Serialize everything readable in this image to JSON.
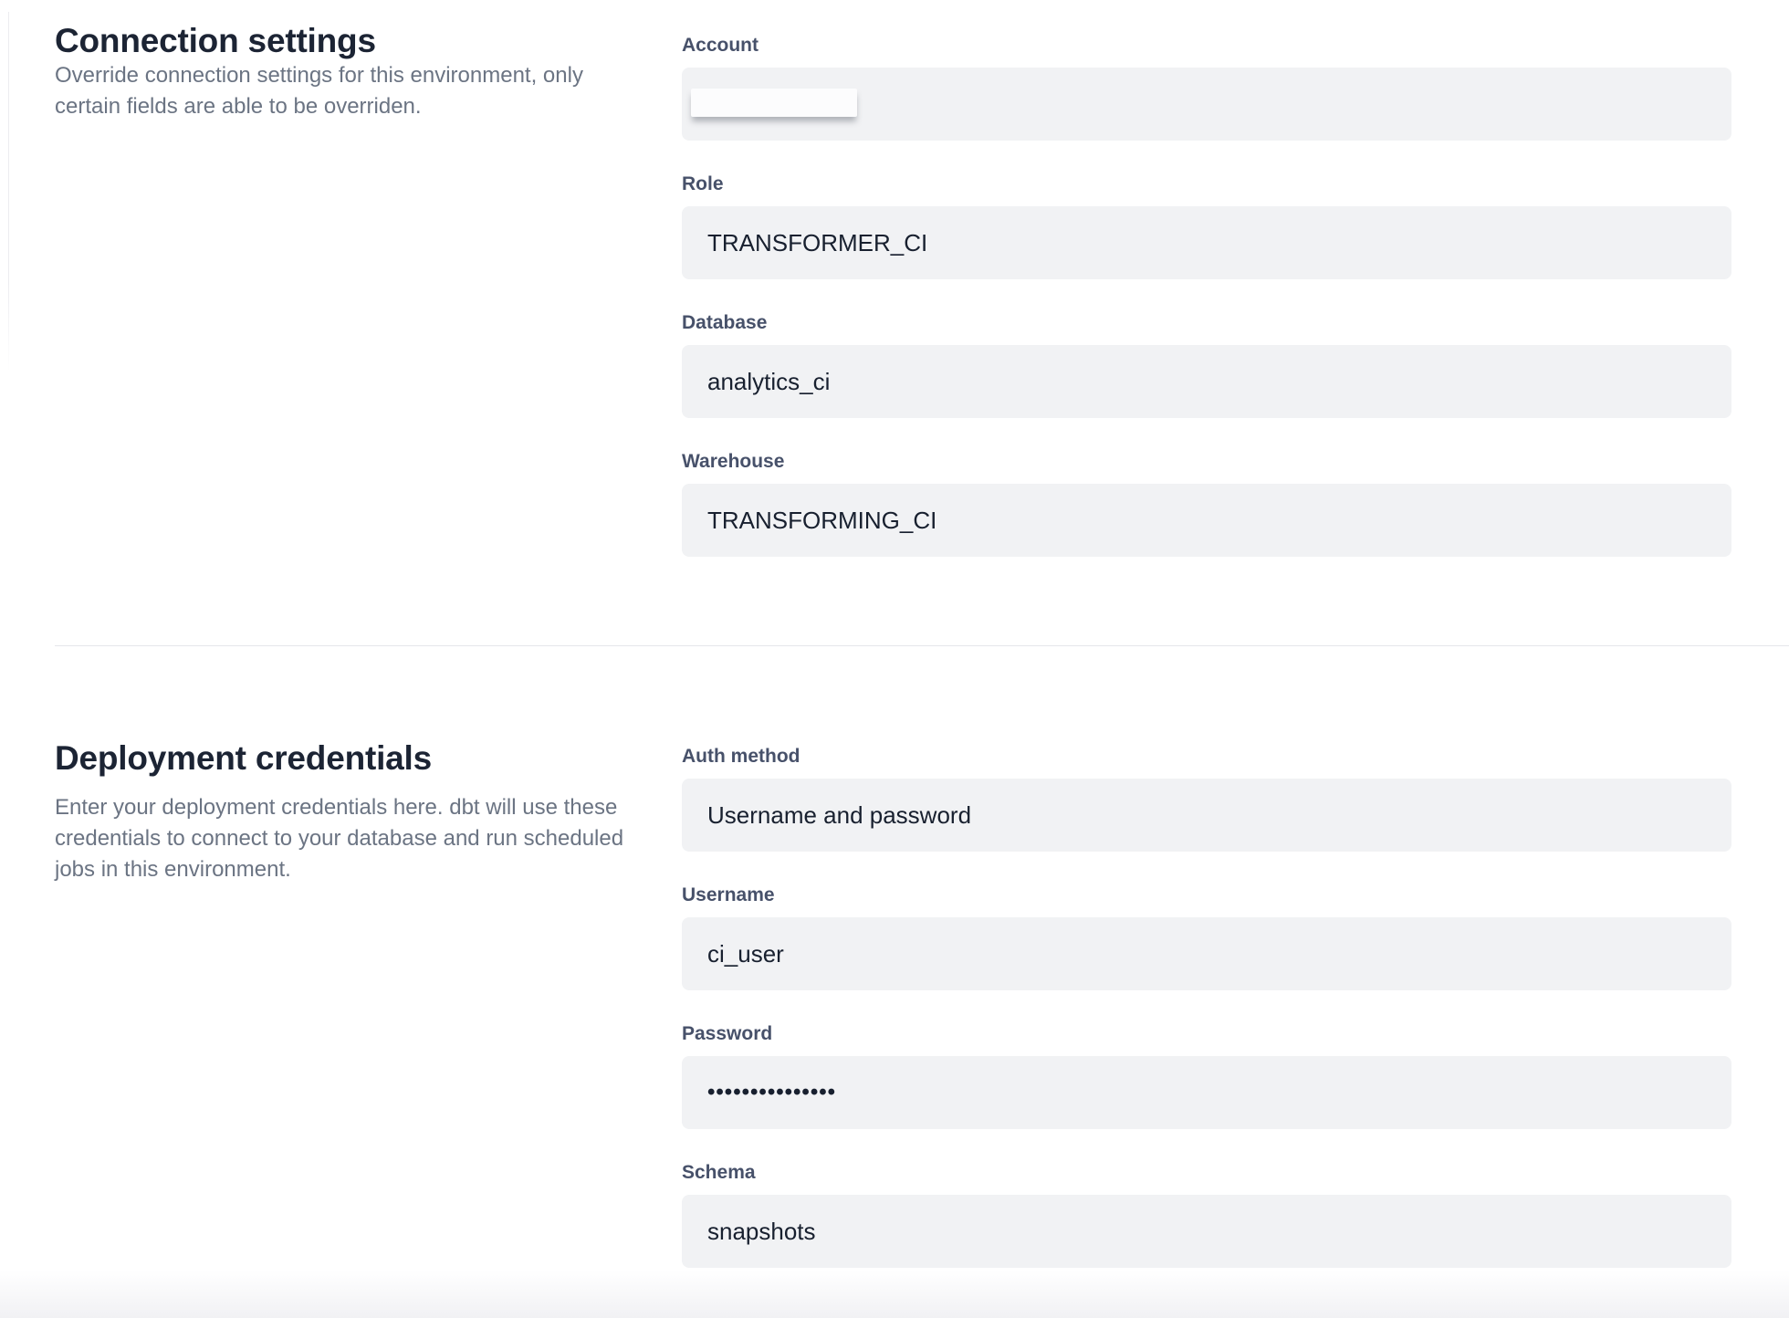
{
  "colors": {
    "heading": "#1c2434",
    "label": "#47516a",
    "value": "#18202f",
    "description": "#6b7483",
    "field_background": "#f1f2f4",
    "divider": "#e5e6eb"
  },
  "connection_settings": {
    "title": "Connection settings",
    "description": "Override connection settings for this environment, only certain fields are able to be overriden.",
    "fields": {
      "account": {
        "label": "Account",
        "value": "",
        "note": "value hidden by white redaction sticker"
      },
      "role": {
        "label": "Role",
        "value": "TRANSFORMER_CI"
      },
      "database": {
        "label": "Database",
        "value": "analytics_ci"
      },
      "warehouse": {
        "label": "Warehouse",
        "value": "TRANSFORMING_CI"
      }
    }
  },
  "deployment_credentials": {
    "title": "Deployment credentials",
    "description": "Enter your deployment credentials here. dbt will use these credentials to connect to your database and run scheduled jobs in this environment.",
    "fields": {
      "auth_method": {
        "label": "Auth method",
        "value": "Username and password"
      },
      "username": {
        "label": "Username",
        "value": "ci_user"
      },
      "password": {
        "label": "Password",
        "value": "•••••••••••••••",
        "masked": true
      },
      "schema": {
        "label": "Schema",
        "value": "snapshots"
      }
    }
  }
}
